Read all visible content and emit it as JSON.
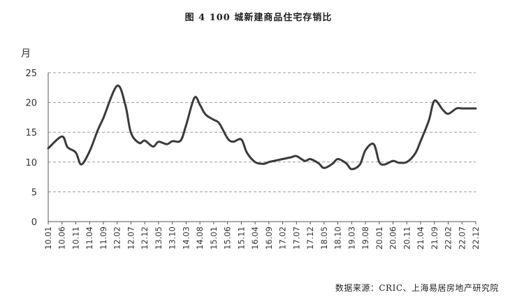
{
  "chart_data": {
    "type": "line",
    "title": "图 4   100 城新建商品住宅存销比",
    "ylabel": "月",
    "ylim": [
      0,
      25
    ],
    "yticks": [
      0,
      5,
      10,
      15,
      20,
      25
    ],
    "grid": "horizontal-dashed",
    "legend": "none",
    "line_color": "#3a3a3a",
    "x_tick_labels": [
      "10.01",
      "10.06",
      "10.11",
      "11.04",
      "11.09",
      "12.02",
      "12.07",
      "12.12",
      "13.05",
      "13.10",
      "14.03",
      "14.08",
      "15.01",
      "15.06",
      "15.11",
      "16.04",
      "16.09",
      "17.02",
      "17.07",
      "17.12",
      "18.05",
      "18.10",
      "19.03",
      "19.08",
      "20.01",
      "20.06",
      "20.11",
      "21.04",
      "21.09",
      "22.02",
      "22.07",
      "22.12"
    ],
    "x": [
      "10.01",
      "10.06",
      "10.08",
      "10.11",
      "11.01",
      "11.04",
      "11.07",
      "11.09",
      "12.02",
      "12.05",
      "12.07",
      "12.10",
      "12.12",
      "13.03",
      "13.05",
      "13.08",
      "13.10",
      "14.01",
      "14.03",
      "14.06",
      "14.08",
      "14.10",
      "15.01",
      "15.03",
      "15.06",
      "15.08",
      "15.11",
      "16.01",
      "16.04",
      "16.07",
      "16.09",
      "16.12",
      "17.02",
      "17.05",
      "17.07",
      "17.10",
      "17.12",
      "18.03",
      "18.05",
      "18.08",
      "18.10",
      "19.01",
      "19.03",
      "19.06",
      "19.08",
      "19.11",
      "20.01",
      "20.03",
      "20.06",
      "20.08",
      "20.11",
      "21.02",
      "21.04",
      "21.07",
      "21.09",
      "21.12",
      "22.02",
      "22.05",
      "22.07",
      "22.10",
      "22.12"
    ],
    "values": [
      12.3,
      14.3,
      12.5,
      11.6,
      9.6,
      11.8,
      15.4,
      17.4,
      22.8,
      19.5,
      14.9,
      13.2,
      13.6,
      12.6,
      13.4,
      13.0,
      13.5,
      13.6,
      16.2,
      20.8,
      19.6,
      18.0,
      17.1,
      16.5,
      14.0,
      13.4,
      13.8,
      11.6,
      10.0,
      9.7,
      10.0,
      10.3,
      10.5,
      10.8,
      11.0,
      10.2,
      10.5,
      9.8,
      9.0,
      9.7,
      10.5,
      9.8,
      8.8,
      9.6,
      12.0,
      13.0,
      10.0,
      9.6,
      10.2,
      9.9,
      10.0,
      11.4,
      13.5,
      17.0,
      20.3,
      18.8,
      18.1,
      19.0,
      19.0,
      19.0,
      19.0
    ]
  },
  "source_text": "数据来源：CRIC、上海易居房地产研究院"
}
